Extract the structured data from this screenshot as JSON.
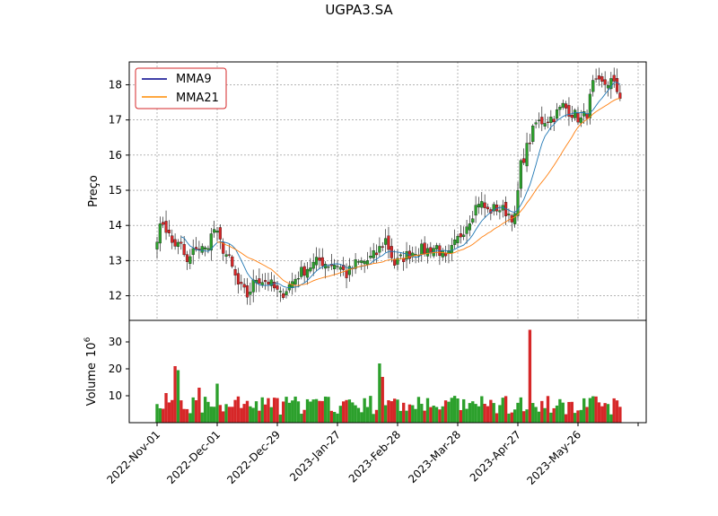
{
  "chart_data": {
    "type": "candlestick",
    "title": "UGPA3.SA",
    "ylabel": "Preço",
    "volume_label": "Volume",
    "volume_exponent": "10",
    "volume_exponent_power": "6",
    "legend": {
      "placement": "top-left",
      "items": [
        {
          "label": "MMA9",
          "color": "#00008b"
        },
        {
          "label": "MMA21",
          "color": "#ff8c00"
        }
      ]
    },
    "colors": {
      "up": "#2ca02c",
      "down": "#d62728",
      "mma9_line": "#1f77b4",
      "mma21_line": "#ff7f0e"
    },
    "grid": true,
    "price_ylim": [
      11.3,
      18.65
    ],
    "price_yticks": [
      12,
      13,
      14,
      15,
      16,
      17,
      18
    ],
    "volume_ylim": [
      0,
      38
    ],
    "volume_yticks": [
      10,
      20,
      30
    ],
    "x_ticks": [
      "2022-Nov-01",
      "2022-Dec-01",
      "2022-Dec-29",
      "2023-Jan-27",
      "2023-Feb-28",
      "2023-Mar-28",
      "2023-Apr-27",
      "2023-May-26"
    ],
    "x_tick_sessions": [
      0,
      20,
      40,
      60,
      80,
      100,
      120,
      140
    ],
    "sessions_to_final_tick": 160,
    "close_anchors": [
      [
        0,
        13.7
      ],
      [
        2,
        14.1
      ],
      [
        5,
        13.5
      ],
      [
        8,
        13.4
      ],
      [
        10,
        12.9
      ],
      [
        13,
        13.4
      ],
      [
        16,
        13.3
      ],
      [
        19,
        13.9
      ],
      [
        21,
        13.5
      ],
      [
        24,
        13.0
      ],
      [
        27,
        12.3
      ],
      [
        30,
        12.0
      ],
      [
        33,
        12.5
      ],
      [
        37,
        12.4
      ],
      [
        41,
        12.0
      ],
      [
        44,
        12.3
      ],
      [
        47,
        12.6
      ],
      [
        50,
        12.8
      ],
      [
        54,
        13.0
      ],
      [
        57,
        12.9
      ],
      [
        60,
        12.9
      ],
      [
        63,
        12.6
      ],
      [
        66,
        12.9
      ],
      [
        70,
        13.0
      ],
      [
        73,
        13.2
      ],
      [
        76,
        13.6
      ],
      [
        79,
        12.9
      ],
      [
        82,
        13.1
      ],
      [
        86,
        13.3
      ],
      [
        90,
        13.3
      ],
      [
        93,
        13.4
      ],
      [
        96,
        13.0
      ],
      [
        100,
        13.6
      ],
      [
        104,
        14.2
      ],
      [
        107,
        14.7
      ],
      [
        110,
        14.4
      ],
      [
        113,
        14.5
      ],
      [
        116,
        14.4
      ],
      [
        119,
        14.2
      ],
      [
        121,
        15.7
      ],
      [
        123,
        16.2
      ],
      [
        126,
        16.9
      ],
      [
        129,
        17.0
      ],
      [
        132,
        17.1
      ],
      [
        135,
        17.4
      ],
      [
        138,
        17.2
      ],
      [
        141,
        17.0
      ],
      [
        143,
        17.2
      ],
      [
        145,
        18.0
      ],
      [
        148,
        18.0
      ],
      [
        151,
        18.1
      ],
      [
        154,
        17.7
      ]
    ],
    "sessions": 155,
    "volume_spikes": [
      [
        6,
        21
      ],
      [
        7,
        19.5
      ],
      [
        20,
        14.5
      ],
      [
        74,
        22
      ],
      [
        75,
        17
      ],
      [
        124,
        34.5
      ],
      [
        3,
        11
      ],
      [
        14,
        13
      ]
    ]
  }
}
